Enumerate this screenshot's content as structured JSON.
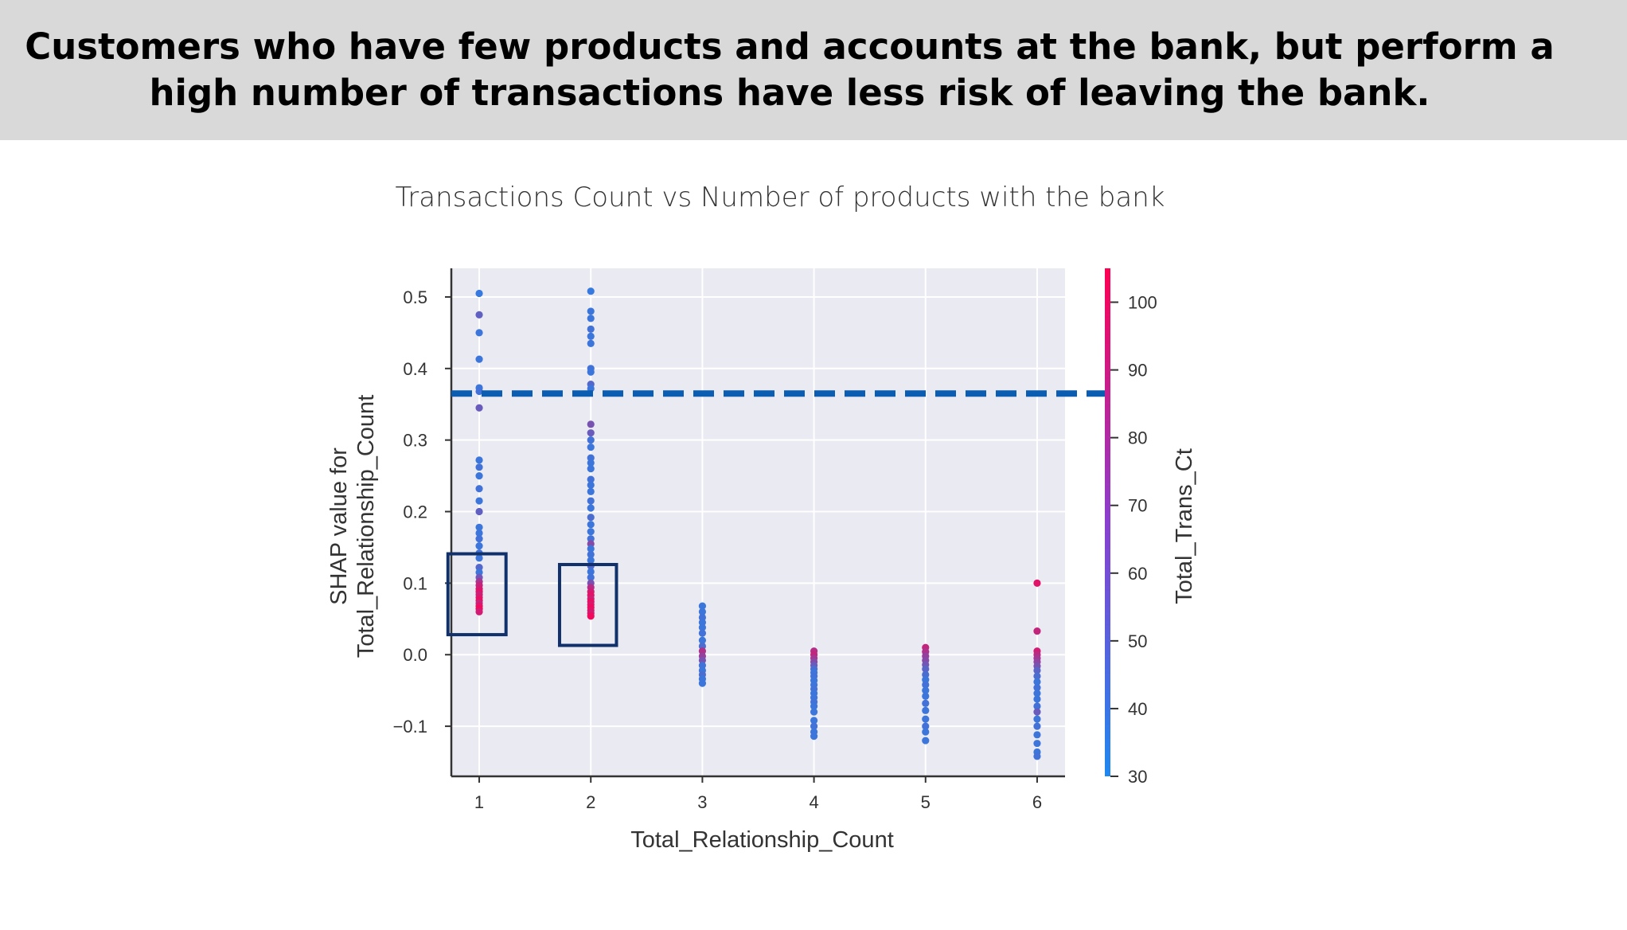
{
  "headline": "Customers who have few products and accounts at the bank, but perform a high number of transactions have less risk of leaving the bank.",
  "colors": {
    "low": "#1e88f0",
    "high": "#ff0052",
    "plot_bg": "#eaeaf2",
    "dashed_line": "#0a5db0",
    "highlight_box": "#10316b"
  },
  "chart_data": {
    "type": "scatter",
    "title": "Transactions Count vs Number of products with the bank",
    "xlabel": "Total_Relationship_Count",
    "ylabel": "SHAP value for\nTotal_Relationship_Count",
    "colorbar_label": "Total_Trans_Ct",
    "xlim": [
      0.75,
      6.25
    ],
    "ylim": [
      -0.17,
      0.54
    ],
    "xticks": [
      1,
      2,
      3,
      4,
      5,
      6
    ],
    "yticks": [
      -0.1,
      0.0,
      0.1,
      0.2,
      0.3,
      0.4,
      0.5
    ],
    "ytick_labels": [
      "−0.1",
      "0.0",
      "0.1",
      "0.2",
      "0.3",
      "0.4",
      "0.5"
    ],
    "colorbar_range": [
      30,
      105
    ],
    "colorbar_ticks": [
      30,
      40,
      50,
      60,
      70,
      80,
      90,
      100
    ],
    "grid": true,
    "reference_line_y": 0.365,
    "highlight_boxes": [
      {
        "x": [
          0.72,
          1.24
        ],
        "y": [
          0.028,
          0.141
        ]
      },
      {
        "x": [
          1.72,
          2.23
        ],
        "y": [
          0.013,
          0.126
        ]
      }
    ],
    "points": [
      {
        "x": 1,
        "y": 0.505,
        "c": 38
      },
      {
        "x": 1,
        "y": 0.475,
        "c": 52
      },
      {
        "x": 1,
        "y": 0.45,
        "c": 40
      },
      {
        "x": 1,
        "y": 0.413,
        "c": 40
      },
      {
        "x": 1,
        "y": 0.373,
        "c": 40
      },
      {
        "x": 1,
        "y": 0.368,
        "c": 42
      },
      {
        "x": 1,
        "y": 0.345,
        "c": 55
      },
      {
        "x": 1,
        "y": 0.272,
        "c": 40
      },
      {
        "x": 1,
        "y": 0.262,
        "c": 42
      },
      {
        "x": 1,
        "y": 0.25,
        "c": 40
      },
      {
        "x": 1,
        "y": 0.232,
        "c": 42
      },
      {
        "x": 1,
        "y": 0.215,
        "c": 40
      },
      {
        "x": 1,
        "y": 0.2,
        "c": 52
      },
      {
        "x": 1,
        "y": 0.178,
        "c": 40
      },
      {
        "x": 1,
        "y": 0.17,
        "c": 40
      },
      {
        "x": 1,
        "y": 0.162,
        "c": 42
      },
      {
        "x": 1,
        "y": 0.152,
        "c": 40
      },
      {
        "x": 1,
        "y": 0.142,
        "c": 42
      },
      {
        "x": 1,
        "y": 0.135,
        "c": 40
      },
      {
        "x": 1,
        "y": 0.122,
        "c": 48
      },
      {
        "x": 1,
        "y": 0.115,
        "c": 40
      },
      {
        "x": 1,
        "y": 0.108,
        "c": 58
      },
      {
        "x": 1,
        "y": 0.102,
        "c": 75
      },
      {
        "x": 1,
        "y": 0.097,
        "c": 85
      },
      {
        "x": 1,
        "y": 0.092,
        "c": 90
      },
      {
        "x": 1,
        "y": 0.088,
        "c": 95
      },
      {
        "x": 1,
        "y": 0.084,
        "c": 88
      },
      {
        "x": 1,
        "y": 0.08,
        "c": 92
      },
      {
        "x": 1,
        "y": 0.076,
        "c": 98
      },
      {
        "x": 1,
        "y": 0.072,
        "c": 85
      },
      {
        "x": 1,
        "y": 0.068,
        "c": 95
      },
      {
        "x": 1,
        "y": 0.064,
        "c": 100
      },
      {
        "x": 1,
        "y": 0.06,
        "c": 90
      },
      {
        "x": 2,
        "y": 0.508,
        "c": 38
      },
      {
        "x": 2,
        "y": 0.48,
        "c": 40
      },
      {
        "x": 2,
        "y": 0.47,
        "c": 40
      },
      {
        "x": 2,
        "y": 0.455,
        "c": 42
      },
      {
        "x": 2,
        "y": 0.445,
        "c": 40
      },
      {
        "x": 2,
        "y": 0.435,
        "c": 40
      },
      {
        "x": 2,
        "y": 0.4,
        "c": 42
      },
      {
        "x": 2,
        "y": 0.395,
        "c": 40
      },
      {
        "x": 2,
        "y": 0.378,
        "c": 48
      },
      {
        "x": 2,
        "y": 0.372,
        "c": 40
      },
      {
        "x": 2,
        "y": 0.322,
        "c": 60
      },
      {
        "x": 2,
        "y": 0.31,
        "c": 55
      },
      {
        "x": 2,
        "y": 0.3,
        "c": 42
      },
      {
        "x": 2,
        "y": 0.29,
        "c": 40
      },
      {
        "x": 2,
        "y": 0.275,
        "c": 42
      },
      {
        "x": 2,
        "y": 0.268,
        "c": 40
      },
      {
        "x": 2,
        "y": 0.26,
        "c": 40
      },
      {
        "x": 2,
        "y": 0.245,
        "c": 42
      },
      {
        "x": 2,
        "y": 0.237,
        "c": 40
      },
      {
        "x": 2,
        "y": 0.228,
        "c": 40
      },
      {
        "x": 2,
        "y": 0.215,
        "c": 42
      },
      {
        "x": 2,
        "y": 0.205,
        "c": 40
      },
      {
        "x": 2,
        "y": 0.192,
        "c": 45
      },
      {
        "x": 2,
        "y": 0.182,
        "c": 40
      },
      {
        "x": 2,
        "y": 0.172,
        "c": 40
      },
      {
        "x": 2,
        "y": 0.162,
        "c": 42
      },
      {
        "x": 2,
        "y": 0.155,
        "c": 65
      },
      {
        "x": 2,
        "y": 0.148,
        "c": 40
      },
      {
        "x": 2,
        "y": 0.14,
        "c": 42
      },
      {
        "x": 2,
        "y": 0.132,
        "c": 40
      },
      {
        "x": 2,
        "y": 0.124,
        "c": 48
      },
      {
        "x": 2,
        "y": 0.116,
        "c": 40
      },
      {
        "x": 2,
        "y": 0.108,
        "c": 42
      },
      {
        "x": 2,
        "y": 0.1,
        "c": 60
      },
      {
        "x": 2,
        "y": 0.094,
        "c": 80
      },
      {
        "x": 2,
        "y": 0.088,
        "c": 90
      },
      {
        "x": 2,
        "y": 0.083,
        "c": 95
      },
      {
        "x": 2,
        "y": 0.078,
        "c": 88
      },
      {
        "x": 2,
        "y": 0.074,
        "c": 98
      },
      {
        "x": 2,
        "y": 0.07,
        "c": 92
      },
      {
        "x": 2,
        "y": 0.066,
        "c": 100
      },
      {
        "x": 2,
        "y": 0.062,
        "c": 95
      },
      {
        "x": 2,
        "y": 0.058,
        "c": 90
      },
      {
        "x": 2,
        "y": 0.054,
        "c": 100
      },
      {
        "x": 3,
        "y": 0.068,
        "c": 40
      },
      {
        "x": 3,
        "y": 0.06,
        "c": 40
      },
      {
        "x": 3,
        "y": 0.052,
        "c": 42
      },
      {
        "x": 3,
        "y": 0.045,
        "c": 40
      },
      {
        "x": 3,
        "y": 0.038,
        "c": 40
      },
      {
        "x": 3,
        "y": 0.03,
        "c": 42
      },
      {
        "x": 3,
        "y": 0.02,
        "c": 40
      },
      {
        "x": 3,
        "y": 0.012,
        "c": 45
      },
      {
        "x": 3,
        "y": 0.005,
        "c": 78
      },
      {
        "x": 3,
        "y": -0.002,
        "c": 70
      },
      {
        "x": 3,
        "y": -0.008,
        "c": 60
      },
      {
        "x": 3,
        "y": -0.015,
        "c": 42
      },
      {
        "x": 3,
        "y": -0.022,
        "c": 40
      },
      {
        "x": 3,
        "y": -0.028,
        "c": 45
      },
      {
        "x": 3,
        "y": -0.034,
        "c": 40
      },
      {
        "x": 3,
        "y": -0.04,
        "c": 40
      },
      {
        "x": 4,
        "y": 0.005,
        "c": 80
      },
      {
        "x": 4,
        "y": 0.0,
        "c": 85
      },
      {
        "x": 4,
        "y": -0.005,
        "c": 75
      },
      {
        "x": 4,
        "y": -0.01,
        "c": 65
      },
      {
        "x": 4,
        "y": -0.015,
        "c": 55
      },
      {
        "x": 4,
        "y": -0.02,
        "c": 45
      },
      {
        "x": 4,
        "y": -0.025,
        "c": 40
      },
      {
        "x": 4,
        "y": -0.03,
        "c": 42
      },
      {
        "x": 4,
        "y": -0.036,
        "c": 40
      },
      {
        "x": 4,
        "y": -0.042,
        "c": 40
      },
      {
        "x": 4,
        "y": -0.048,
        "c": 42
      },
      {
        "x": 4,
        "y": -0.054,
        "c": 40
      },
      {
        "x": 4,
        "y": -0.06,
        "c": 40
      },
      {
        "x": 4,
        "y": -0.066,
        "c": 42
      },
      {
        "x": 4,
        "y": -0.072,
        "c": 40
      },
      {
        "x": 4,
        "y": -0.08,
        "c": 40
      },
      {
        "x": 4,
        "y": -0.092,
        "c": 40
      },
      {
        "x": 4,
        "y": -0.1,
        "c": 42
      },
      {
        "x": 4,
        "y": -0.108,
        "c": 40
      },
      {
        "x": 4,
        "y": -0.114,
        "c": 40
      },
      {
        "x": 5,
        "y": 0.01,
        "c": 85
      },
      {
        "x": 5,
        "y": 0.004,
        "c": 78
      },
      {
        "x": 5,
        "y": -0.002,
        "c": 70
      },
      {
        "x": 5,
        "y": -0.008,
        "c": 65
      },
      {
        "x": 5,
        "y": -0.014,
        "c": 58
      },
      {
        "x": 5,
        "y": -0.02,
        "c": 50
      },
      {
        "x": 5,
        "y": -0.028,
        "c": 45
      },
      {
        "x": 5,
        "y": -0.035,
        "c": 40
      },
      {
        "x": 5,
        "y": -0.042,
        "c": 42
      },
      {
        "x": 5,
        "y": -0.05,
        "c": 40
      },
      {
        "x": 5,
        "y": -0.058,
        "c": 40
      },
      {
        "x": 5,
        "y": -0.068,
        "c": 42
      },
      {
        "x": 5,
        "y": -0.078,
        "c": 40
      },
      {
        "x": 5,
        "y": -0.09,
        "c": 40
      },
      {
        "x": 5,
        "y": -0.1,
        "c": 42
      },
      {
        "x": 5,
        "y": -0.108,
        "c": 40
      },
      {
        "x": 5,
        "y": -0.12,
        "c": 40
      },
      {
        "x": 6,
        "y": 0.1,
        "c": 95
      },
      {
        "x": 6,
        "y": 0.033,
        "c": 85
      },
      {
        "x": 6,
        "y": 0.005,
        "c": 90
      },
      {
        "x": 6,
        "y": 0.0,
        "c": 82
      },
      {
        "x": 6,
        "y": -0.005,
        "c": 75
      },
      {
        "x": 6,
        "y": -0.01,
        "c": 68
      },
      {
        "x": 6,
        "y": -0.016,
        "c": 60
      },
      {
        "x": 6,
        "y": -0.022,
        "c": 50
      },
      {
        "x": 6,
        "y": -0.03,
        "c": 45
      },
      {
        "x": 6,
        "y": -0.038,
        "c": 40
      },
      {
        "x": 6,
        "y": -0.046,
        "c": 42
      },
      {
        "x": 6,
        "y": -0.054,
        "c": 40
      },
      {
        "x": 6,
        "y": -0.062,
        "c": 40
      },
      {
        "x": 6,
        "y": -0.072,
        "c": 42
      },
      {
        "x": 6,
        "y": -0.08,
        "c": 55
      },
      {
        "x": 6,
        "y": -0.09,
        "c": 40
      },
      {
        "x": 6,
        "y": -0.1,
        "c": 42
      },
      {
        "x": 6,
        "y": -0.112,
        "c": 40
      },
      {
        "x": 6,
        "y": -0.124,
        "c": 40
      },
      {
        "x": 6,
        "y": -0.136,
        "c": 40
      },
      {
        "x": 6,
        "y": -0.142,
        "c": 42
      }
    ]
  }
}
